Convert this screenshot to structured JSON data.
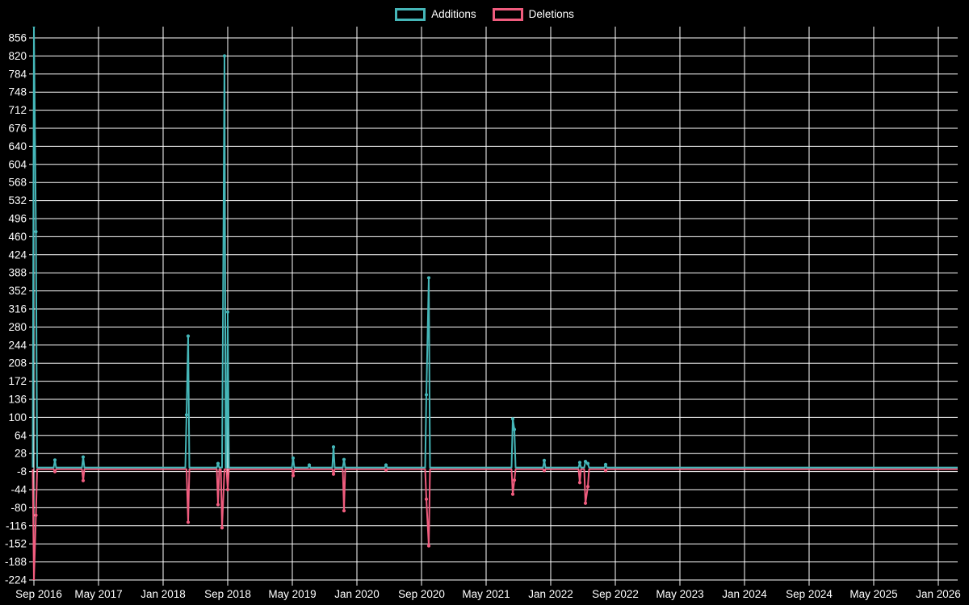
{
  "page": {
    "background": "#000000"
  },
  "chart_data": {
    "type": "line",
    "title": "",
    "legend_position": "top",
    "grid": true,
    "background": "#000000",
    "grid_color": "#ffffff",
    "text_color": "#ffffff",
    "x_axis": {
      "tick_labels": [
        "Sep 2016",
        "May 2017",
        "Jan 2018",
        "Sep 2018",
        "May 2019",
        "Jan 2020",
        "Sep 2020",
        "May 2021",
        "Jan 2022",
        "Sep 2022",
        "May 2023",
        "Jan 2024",
        "Sep 2024",
        "May 2025",
        "Jan 2026"
      ],
      "tick_interval_months": 8,
      "start": "Sep 2016",
      "end": "Jan 2026"
    },
    "y_axis": {
      "min": -224,
      "max": 856,
      "step": 36,
      "tick_labels": [
        856,
        820,
        784,
        748,
        712,
        676,
        640,
        604,
        568,
        532,
        496,
        460,
        424,
        388,
        352,
        316,
        280,
        244,
        208,
        172,
        136,
        100,
        64,
        28,
        -8,
        -44,
        -80,
        -116,
        -152,
        -188,
        -224
      ]
    },
    "series": [
      {
        "name": "Additions",
        "color": "#45b6b8",
        "sign": "positive"
      },
      {
        "name": "Deletions",
        "color": "#f05c7e",
        "sign": "negative"
      }
    ],
    "baseline": 0,
    "events": [
      {
        "date": "Sep 2016",
        "m": 0.0,
        "additions": 880,
        "deletions": -225,
        "clipped": true
      },
      {
        "date": "Sep 2016",
        "m": 0.25,
        "additions": 470,
        "deletions": -95
      },
      {
        "date": "Nov 2016",
        "m": 2.6,
        "additions": 15,
        "deletions": -8
      },
      {
        "date": "Mar 2017",
        "m": 6.1,
        "additions": 21,
        "deletions": -26
      },
      {
        "date": "Apr 2018",
        "m": 18.9,
        "additions": 105,
        "deletions": 0
      },
      {
        "date": "Apr 2018",
        "m": 19.1,
        "additions": 262,
        "deletions": -109
      },
      {
        "date": "Aug 2018",
        "m": 22.8,
        "additions": 8,
        "deletions": -74
      },
      {
        "date": "Aug 2018",
        "m": 23.3,
        "additions": 0,
        "deletions": -120
      },
      {
        "date": "Aug 2018",
        "m": 23.6,
        "additions": 820,
        "deletions": 0
      },
      {
        "date": "Sep 2018",
        "m": 24.0,
        "additions": 310,
        "deletions": -44
      },
      {
        "date": "May 2019",
        "m": 32.1,
        "additions": 19,
        "deletions": -16
      },
      {
        "date": "Jul 2019",
        "m": 34.1,
        "additions": 5,
        "deletions": 0
      },
      {
        "date": "Oct 2019",
        "m": 37.1,
        "additions": 41,
        "deletions": -13
      },
      {
        "date": "Nov 2019",
        "m": 38.4,
        "additions": 16,
        "deletions": -86
      },
      {
        "date": "Apr 2020",
        "m": 43.6,
        "additions": 5,
        "deletions": -5
      },
      {
        "date": "Sep 2020",
        "m": 48.6,
        "additions": 145,
        "deletions": -63
      },
      {
        "date": "Oct 2020",
        "m": 48.9,
        "additions": 378,
        "deletions": -156
      },
      {
        "date": "Aug 2021",
        "m": 59.3,
        "additions": 97,
        "deletions": -53
      },
      {
        "date": "Aug 2021",
        "m": 59.5,
        "additions": 76,
        "deletions": -25
      },
      {
        "date": "Dec 2021",
        "m": 63.2,
        "additions": 14,
        "deletions": -6
      },
      {
        "date": "Apr 2022",
        "m": 67.6,
        "additions": 10,
        "deletions": -30
      },
      {
        "date": "May 2022",
        "m": 68.3,
        "additions": 12,
        "deletions": -71
      },
      {
        "date": "May 2022",
        "m": 68.6,
        "additions": 8,
        "deletions": -38
      },
      {
        "date": "Aug 2022",
        "m": 70.8,
        "additions": 6,
        "deletions": -6
      }
    ],
    "notes": "Weekly additions/deletions. Sep 2016 additions spike is clipped by the chart top (exceeds 856). All other weeks are zero; both lines run flat at 0 through Jan 2026."
  }
}
